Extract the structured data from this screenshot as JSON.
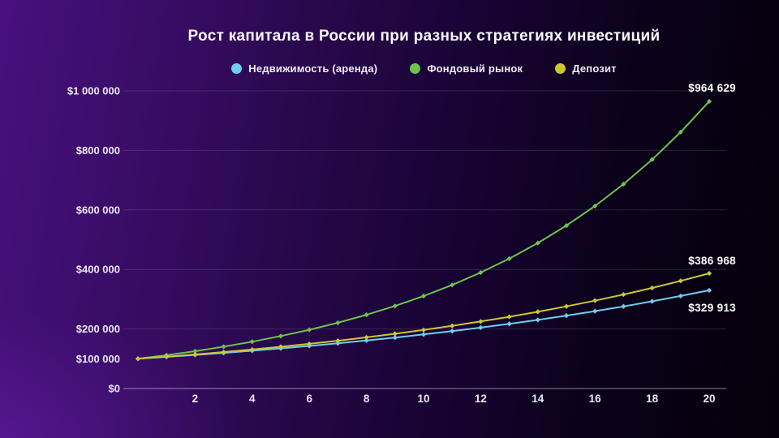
{
  "title": "Рост капитала в России при разных стратегиях инвестиций",
  "colors": {
    "background_left": "#48107e",
    "background_right": "#040009",
    "axis_text": "#eee7f6",
    "value_label_text": "#ffffff",
    "gridline": "rgba(216,208,228,0.16)",
    "zero_axis_line": "rgba(222,215,235,0.6)"
  },
  "chart_data": {
    "type": "line",
    "title": "Рост капитала в России при разных стратегиях инвестиций",
    "xlabel": "",
    "ylabel": "",
    "grid": true,
    "legend_position": "top",
    "ylim": [
      0,
      1000000
    ],
    "x": [
      0,
      1,
      2,
      3,
      4,
      5,
      6,
      7,
      8,
      9,
      10,
      11,
      12,
      13,
      14,
      15,
      16,
      17,
      18,
      19,
      20
    ],
    "x_ticks": [
      2,
      4,
      6,
      8,
      10,
      12,
      14,
      16,
      18,
      20
    ],
    "y_ticks": [
      {
        "value": 1000000,
        "label": "$1 000 000",
        "gridline": true
      },
      {
        "value": 800000,
        "label": "$800 000",
        "gridline": true
      },
      {
        "value": 600000,
        "label": "$600 000",
        "gridline": true
      },
      {
        "value": 400000,
        "label": "$400 000",
        "gridline": true
      },
      {
        "value": 200000,
        "label": "$200 000",
        "gridline": true
      },
      {
        "value": 100000,
        "label": "$100 000",
        "gridline": false
      },
      {
        "value": 0,
        "label": "$0",
        "gridline": true
      }
    ],
    "series": [
      {
        "name": "Недвижимость (аренда)",
        "color": "#6fcdf3",
        "end_label": "$329 913",
        "values": [
          100000,
          106151,
          112681,
          119612,
          126970,
          134780,
          143070,
          151871,
          161213,
          171129,
          181655,
          192829,
          204690,
          217281,
          230647,
          244834,
          259894,
          275881,
          292850,
          310864,
          329913
        ]
      },
      {
        "name": "Фондовый рынок",
        "color": "#6ec24f",
        "end_label": "$964 629",
        "values": [
          100000,
          112000,
          125440,
          140493,
          157352,
          176234,
          197382,
          221068,
          247596,
          277308,
          310585,
          347855,
          389598,
          436349,
          488711,
          547357,
          613039,
          686604,
          768997,
          861276,
          964629
        ]
      },
      {
        "name": "Депозит",
        "color": "#ccc832",
        "end_label": "$386 968",
        "values": [
          100000,
          107000,
          114490,
          122504,
          131080,
          140255,
          150073,
          160578,
          171819,
          183846,
          196715,
          210485,
          225219,
          240985,
          257853,
          275903,
          295216,
          315882,
          337993,
          361653,
          386968
        ]
      }
    ]
  }
}
